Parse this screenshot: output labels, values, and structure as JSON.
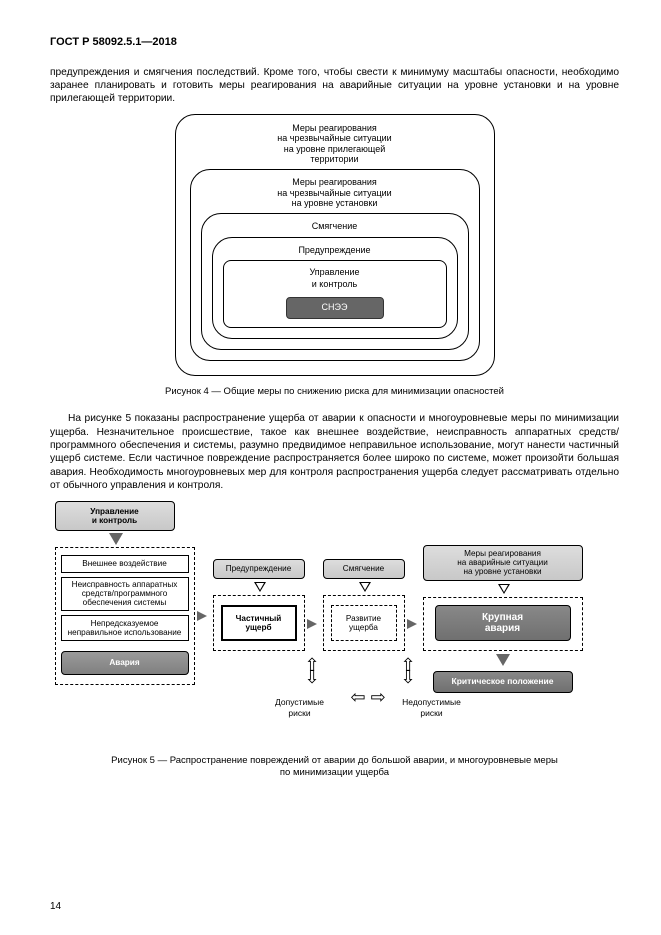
{
  "header": "ГОСТ Р 58092.5.1—2018",
  "intro_para": "предупреждения и смягчения последствий. Кроме того, чтобы свести к минимуму масштабы опасности, необходимо заранее планировать и готовить меры реагирования на аварийные ситуации на уровне установки и на уровне прилегающей территории.",
  "fig4": {
    "ring1": "Меры реагирования\nна чрезвычайные ситуации\nна уровне прилегающей\nтерритории",
    "ring2": "Меры реагирования\nна чрезвычайные ситуации\nна уровне установки",
    "ring3": "Смягчение",
    "ring4": "Предупреждение",
    "ring5": "Управление\nи контроль",
    "core": "СНЭЭ",
    "caption": "Рисунок 4 — Общие меры по снижению риска для минимизации опасностей"
  },
  "middle_para": "На рисунке 5 показаны распространение ущерба от аварии к опасности и многоуровневые меры по минимизации ущерба. Незначительное происшествие, такое как внешнее воздействие, неисправность аппаратных средств/программного обеспечения и системы, разумно предвидимое неправильное использование, могут нанести частичный ущерб системе. Если частичное повреждение распространяется более широко по системе, может произойти большая авария. Необходимость многоуровневых мер для контроля распространения ущерба следует рассматривать отдельно от обычного управления и контроля.",
  "fig5": {
    "mgmt": "Управление\nи контроль",
    "ext": "Внешнее воздействие",
    "hw": "Неисправность аппаратных\nсредств/программного\nобеспечения системы",
    "misuse": "Непредсказуемое\nнеправильное использование",
    "accident": "Авария",
    "warning": "Предупреждение",
    "mitigation": "Смягчение",
    "partial": "Частичный\nущерб",
    "dev": "Развитие\nущерба",
    "emerg": "Меры реагирования\nна аварийные ситуации\nна уровне установки",
    "major": "Крупная\nавария",
    "critical": "Критическое положение",
    "accept": "Допустимые\nриски",
    "unaccept": "Недопустимые\nриски",
    "caption": "Рисунок 5 — Распространение повреждений от аварии до большой аварии, и многоуровневые меры\nпо минимизации ущерба"
  },
  "page_number": "14"
}
